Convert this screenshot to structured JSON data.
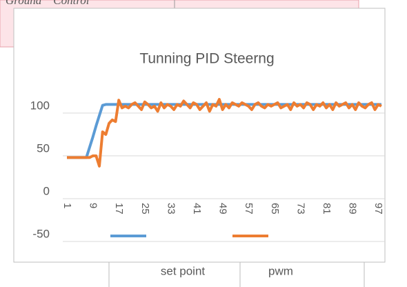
{
  "background_text": "Ground    Control",
  "chart_data": {
    "type": "line",
    "title": "Tunning PID Steerng",
    "categories": [
      1,
      null,
      null,
      null,
      null,
      null,
      null,
      null,
      9,
      null,
      null,
      null,
      null,
      null,
      null,
      null,
      17,
      null,
      null,
      null,
      null,
      null,
      null,
      null,
      25,
      null,
      null,
      null,
      null,
      null,
      null,
      null,
      33,
      null,
      null,
      null,
      null,
      null,
      null,
      null,
      41,
      null,
      null,
      null,
      null,
      null,
      null,
      null,
      49,
      null,
      null,
      null,
      null,
      null,
      null,
      null,
      57,
      null,
      null,
      null,
      null,
      null,
      null,
      null,
      65,
      null,
      null,
      null,
      null,
      null,
      null,
      null,
      73,
      null,
      null,
      null,
      null,
      null,
      null,
      null,
      81,
      null,
      null,
      null,
      null,
      null,
      null,
      null,
      89,
      null,
      null,
      null,
      null,
      null,
      null,
      null,
      97,
      null
    ],
    "series": [
      {
        "name": "set point",
        "color": "#5b9bd5",
        "values": [
          48,
          48,
          48,
          48,
          48,
          48,
          48,
          60,
          72,
          85,
          97,
          109,
          110,
          110,
          110,
          110,
          110,
          110,
          110,
          110,
          110,
          110,
          110,
          110,
          110,
          110,
          110,
          110,
          110,
          110,
          110,
          110,
          110,
          110,
          110,
          110,
          110,
          110,
          110,
          110,
          110,
          110,
          110,
          110,
          110,
          110,
          110,
          110,
          110,
          110,
          110,
          110,
          110,
          110,
          110,
          110,
          110,
          110,
          110,
          110,
          110,
          110,
          110,
          110,
          110,
          110,
          110,
          110,
          110,
          110,
          110,
          110,
          110,
          110,
          110,
          110,
          110,
          110,
          110,
          110,
          110,
          110,
          110,
          110,
          110,
          110,
          110,
          110,
          110,
          110,
          110,
          110,
          110,
          110,
          110,
          110,
          110,
          110
        ]
      },
      {
        "name": "pwm",
        "color": "#ed7d31",
        "values": [
          48,
          48,
          48,
          48,
          48,
          48,
          48,
          48,
          50,
          50,
          38,
          78,
          75,
          88,
          92,
          90,
          115,
          106,
          108,
          106,
          110,
          112,
          108,
          104,
          113,
          110,
          106,
          108,
          102,
          112,
          106,
          110,
          108,
          104,
          110,
          108,
          114,
          110,
          106,
          112,
          110,
          104,
          108,
          112,
          102,
          110,
          108,
          116,
          104,
          110,
          106,
          112,
          110,
          108,
          112,
          110,
          108,
          104,
          110,
          112,
          108,
          106,
          110,
          108,
          110,
          112,
          106,
          108,
          110,
          104,
          112,
          108,
          110,
          106,
          112,
          110,
          104,
          110,
          108,
          112,
          106,
          110,
          104,
          112,
          108,
          110,
          112,
          106,
          110,
          104,
          112,
          108,
          106,
          110,
          112,
          104,
          110,
          108
        ]
      }
    ],
    "ylim": [
      -50,
      120
    ],
    "yticks": [
      -50,
      0,
      50,
      100
    ],
    "grid": true
  }
}
